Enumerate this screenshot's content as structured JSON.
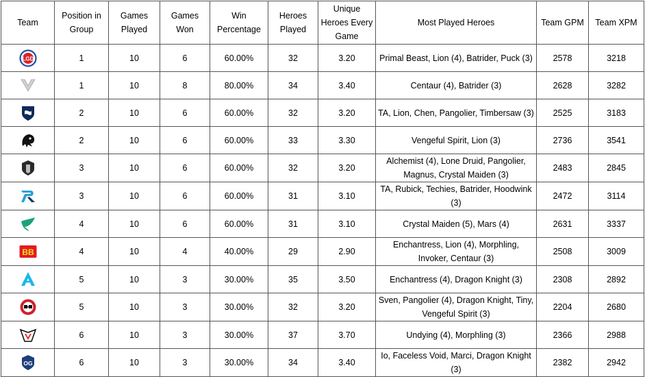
{
  "headers": {
    "team": "Team",
    "position": "Position in Group",
    "played": "Games Played",
    "won": "Games Won",
    "winpct": "Win Percentage",
    "heroes": "Heroes Played",
    "unique": "Unique Heroes Every Game",
    "most": "Most Played Heroes",
    "gpm": "Team GPM",
    "xpm": "Team XPM"
  },
  "rows": [
    {
      "logo": "psg-lgd-logo",
      "position": "1",
      "played": "10",
      "won": "6",
      "winpct": "60.00%",
      "heroes": "32",
      "unique": "3.20",
      "most": "Primal Beast, Lion (4), Batrider, Puck (3)",
      "gpm": "2578",
      "xpm": "3218"
    },
    {
      "logo": "xtreme-gaming-logo",
      "position": "1",
      "played": "10",
      "won": "8",
      "winpct": "80.00%",
      "heroes": "34",
      "unique": "3.40",
      "most": "Centaur (4), Batrider (3)",
      "gpm": "2628",
      "xpm": "3282"
    },
    {
      "logo": "team-liquid-logo",
      "position": "2",
      "played": "10",
      "won": "6",
      "winpct": "60.00%",
      "heroes": "32",
      "unique": "3.20",
      "most": "TA, Lion, Chen, Pangolier, Timbersaw (3)",
      "gpm": "2525",
      "xpm": "3183"
    },
    {
      "logo": "team-spirit-logo",
      "position": "2",
      "played": "10",
      "won": "6",
      "winpct": "60.00%",
      "heroes": "33",
      "unique": "3.30",
      "most": "Vengeful Spirit, Lion (3)",
      "gpm": "2736",
      "xpm": "3541"
    },
    {
      "logo": "gaimin-gladiators-logo",
      "position": "3",
      "played": "10",
      "won": "6",
      "winpct": "60.00%",
      "heroes": "32",
      "unique": "3.20",
      "most": "Alchemist (4), Lone Druid, Pangolier, Magnus, Crystal Maiden (3)",
      "gpm": "2483",
      "xpm": "2845"
    },
    {
      "logo": "talon-esports-logo",
      "position": "3",
      "played": "10",
      "won": "6",
      "winpct": "60.00%",
      "heroes": "31",
      "unique": "3.10",
      "most": "TA, Rubick, Techies, Batrider, Hoodwink (3)",
      "gpm": "2472",
      "xpm": "3114"
    },
    {
      "logo": "team-falcons-logo",
      "position": "4",
      "played": "10",
      "won": "6",
      "winpct": "60.00%",
      "heroes": "31",
      "unique": "3.10",
      "most": "Crystal Maiden (5), Mars (4)",
      "gpm": "2631",
      "xpm": "3337"
    },
    {
      "logo": "betboom-team-logo",
      "position": "4",
      "played": "10",
      "won": "4",
      "winpct": "40.00%",
      "heroes": "29",
      "unique": "2.90",
      "most": "Enchantress, Lion (4), Morphling, Invoker, Centaur (3)",
      "gpm": "2508",
      "xpm": "3009"
    },
    {
      "logo": "team-aster-logo",
      "position": "5",
      "played": "10",
      "won": "3",
      "winpct": "30.00%",
      "heroes": "35",
      "unique": "3.50",
      "most": "Enchantress (4), Dragon Knight (3)",
      "gpm": "2308",
      "xpm": "2892"
    },
    {
      "logo": "nouns-logo",
      "position": "5",
      "played": "10",
      "won": "3",
      "winpct": "30.00%",
      "heroes": "32",
      "unique": "3.20",
      "most": "Sven, Pangolier (4), Dragon Knight, Tiny, Vengeful Spirit (3)",
      "gpm": "2204",
      "xpm": "2680"
    },
    {
      "logo": "virtus-pro-logo",
      "position": "6",
      "played": "10",
      "won": "3",
      "winpct": "30.00%",
      "heroes": "37",
      "unique": "3.70",
      "most": "Undying (4), Morphling (3)",
      "gpm": "2366",
      "xpm": "2988"
    },
    {
      "logo": "og-logo",
      "position": "6",
      "played": "10",
      "won": "3",
      "winpct": "30.00%",
      "heroes": "34",
      "unique": "3.40",
      "most": "Io, Faceless Void, Marci, Dragon Knight (3)",
      "gpm": "2382",
      "xpm": "2942"
    }
  ]
}
